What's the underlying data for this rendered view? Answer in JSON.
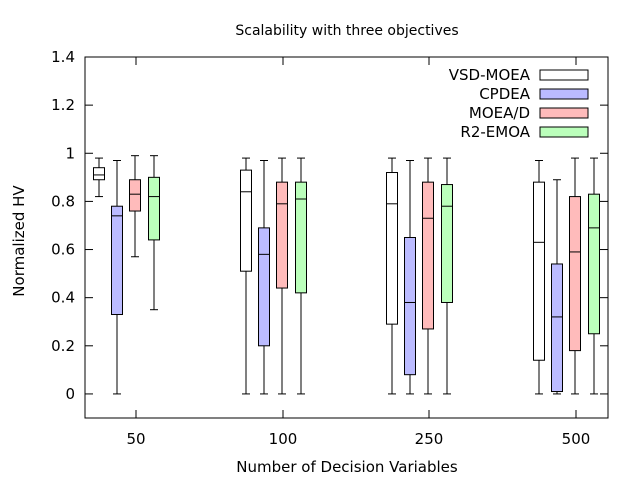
{
  "chart_data": {
    "type": "boxplot",
    "title": "Scalability with three objectives",
    "xlabel": "Number of Decision Variables",
    "ylabel": "Normalized HV",
    "ylim": [
      -0.1,
      1.4
    ],
    "yticks": [
      "0",
      "0.2",
      "0.4",
      "0.6",
      "0.8",
      "1",
      "1.2",
      "1.4"
    ],
    "categories": [
      "50",
      "100",
      "250",
      "500"
    ],
    "grid": false,
    "legend_position": "top-right",
    "series": [
      {
        "name": "VSD-MOEA",
        "color": "#ffffff",
        "boxes": [
          {
            "min": 0.82,
            "q1": 0.89,
            "median": 0.91,
            "q3": 0.94,
            "max": 0.98
          },
          {
            "min": 0.0,
            "q1": 0.51,
            "median": 0.84,
            "q3": 0.93,
            "max": 0.98
          },
          {
            "min": 0.0,
            "q1": 0.29,
            "median": 0.79,
            "q3": 0.92,
            "max": 0.98
          },
          {
            "min": 0.0,
            "q1": 0.14,
            "median": 0.63,
            "q3": 0.88,
            "max": 0.97
          }
        ]
      },
      {
        "name": "CPDEA",
        "color": "#bbbbff",
        "boxes": [
          {
            "min": 0.0,
            "q1": 0.33,
            "median": 0.74,
            "q3": 0.78,
            "max": 0.97
          },
          {
            "min": 0.0,
            "q1": 0.2,
            "median": 0.58,
            "q3": 0.69,
            "max": 0.97
          },
          {
            "min": 0.0,
            "q1": 0.08,
            "median": 0.38,
            "q3": 0.65,
            "max": 0.97
          },
          {
            "min": 0.0,
            "q1": 0.01,
            "median": 0.32,
            "q3": 0.54,
            "max": 0.89
          }
        ]
      },
      {
        "name": "MOEA/D",
        "color": "#ffbbbb",
        "boxes": [
          {
            "min": 0.57,
            "q1": 0.76,
            "median": 0.83,
            "q3": 0.89,
            "max": 0.99
          },
          {
            "min": 0.0,
            "q1": 0.44,
            "median": 0.79,
            "q3": 0.88,
            "max": 0.98
          },
          {
            "min": 0.0,
            "q1": 0.27,
            "median": 0.73,
            "q3": 0.88,
            "max": 0.98
          },
          {
            "min": 0.0,
            "q1": 0.18,
            "median": 0.59,
            "q3": 0.82,
            "max": 0.98
          }
        ]
      },
      {
        "name": "R2-EMOA",
        "color": "#bbffbb",
        "boxes": [
          {
            "min": 0.35,
            "q1": 0.64,
            "median": 0.82,
            "q3": 0.9,
            "max": 0.99
          },
          {
            "min": 0.0,
            "q1": 0.42,
            "median": 0.81,
            "q3": 0.88,
            "max": 0.98
          },
          {
            "min": 0.0,
            "q1": 0.38,
            "median": 0.78,
            "q3": 0.87,
            "max": 0.98
          },
          {
            "min": 0.0,
            "q1": 0.25,
            "median": 0.69,
            "q3": 0.83,
            "max": 0.98
          }
        ]
      }
    ]
  }
}
